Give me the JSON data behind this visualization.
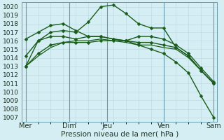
{
  "bg_color": "#d4eef4",
  "grid_color_minor": "#b8d8e0",
  "grid_color_major": "#8ab8c8",
  "line_color": "#1a5c1a",
  "xlabel": "Pression niveau de la mer( hPa )",
  "xlabel_fontsize": 7.5,
  "ylim": [
    1006.5,
    1020.5
  ],
  "yticks": [
    1007,
    1008,
    1009,
    1010,
    1011,
    1012,
    1013,
    1014,
    1015,
    1016,
    1017,
    1018,
    1019,
    1020
  ],
  "xtick_labels": [
    "Mer",
    "",
    "Dim",
    "Jeu",
    "",
    "Ven",
    "",
    "Sam"
  ],
  "xtick_positions": [
    0.0,
    2.0,
    3.5,
    6.5,
    9.5,
    11.0,
    13.0,
    15.0
  ],
  "day_vlines": [
    0.0,
    3.5,
    6.5,
    11.0,
    15.0
  ],
  "xlim": [
    -0.3,
    15.3
  ],
  "series": [
    {
      "y": [
        1013,
        1016,
        1017,
        1017.2,
        1017,
        1018.2,
        1020.0,
        1020.2,
        1019.2,
        1018.0,
        1017.5,
        1017.5,
        1015.2,
        1014.2,
        1012.5,
        1011.0
      ],
      "markers": true,
      "lw": 1.0
    },
    {
      "y": [
        1016.2,
        1017.0,
        1017.8,
        1018.0,
        1017.2,
        1016.5,
        1016.5,
        1016.2,
        1016.0,
        1016.5,
        1016.5,
        1016.2,
        1015.5,
        1014.5,
        1012.8,
        1011.2
      ],
      "markers": true,
      "lw": 1.0
    },
    {
      "y": [
        1014.2,
        1016.0,
        1016.5,
        1016.5,
        1016.2,
        1016.5,
        1016.5,
        1016.2,
        1016.0,
        1015.8,
        1015.8,
        1015.5,
        1015.2,
        1014.2,
        1012.5,
        1011.0
      ],
      "markers": true,
      "lw": 1.0
    },
    {
      "y": [
        1013.0,
        1014.2,
        1015.2,
        1015.8,
        1016.0,
        1016.0,
        1016.2,
        1016.0,
        1015.8,
        1015.5,
        1015.5,
        1015.2,
        1015.0,
        1014.0,
        1012.5,
        1011.0
      ],
      "markers": false,
      "lw": 0.9
    },
    {
      "y": [
        1013.0,
        1014.5,
        1015.5,
        1015.8,
        1015.8,
        1015.8,
        1016.0,
        1016.0,
        1016.0,
        1015.5,
        1015.0,
        1014.5,
        1013.5,
        1012.2,
        1009.5,
        1007.0
      ],
      "markers": true,
      "lw": 1.0
    }
  ],
  "marker_size": 2.5,
  "tick_fontsize": 6.5,
  "xtick_fontsize": 7.0
}
